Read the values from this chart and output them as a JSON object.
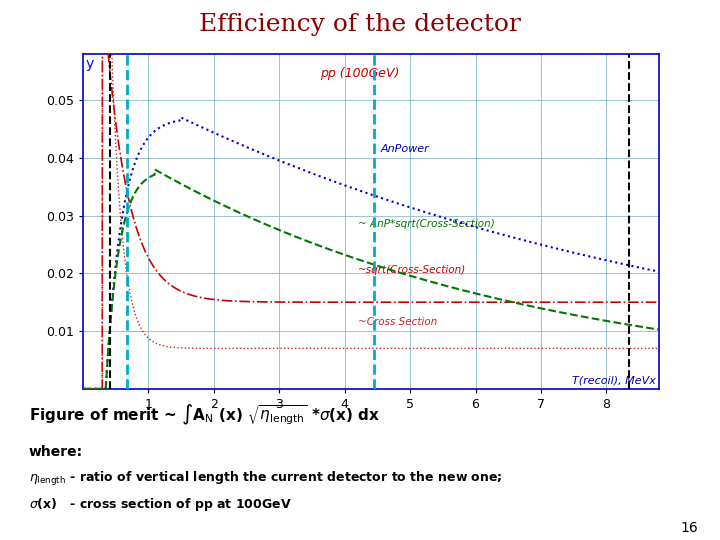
{
  "title": "Efficiency of the detector",
  "title_color": "#8B0000",
  "title_fontsize": 18,
  "plot_bg": "#ffffff",
  "outer_bg": "#ffffff",
  "xlim": [
    0,
    8.8
  ],
  "ylim": [
    0,
    0.058
  ],
  "yticks": [
    0.01,
    0.02,
    0.03,
    0.04,
    0.05
  ],
  "xticks": [
    1,
    2,
    3,
    4,
    5,
    6,
    7,
    8
  ],
  "xlabel": "T(recoil), MeVx",
  "xlabel_color": "#0000aa",
  "pp_label": "pp (100GeV)",
  "pp_label_color": "#cc0000",
  "curve_colors": {
    "blue_dotted": "#0000cc",
    "green_dashed": "#007700",
    "red_dotdash": "#cc0000",
    "red_dotted": "#cc2222"
  },
  "vlines_black": [
    0.42,
    8.35
  ],
  "vlines_cyan": [
    0.68,
    4.45
  ],
  "grid_color": "#88bbcc",
  "page_number": "16",
  "label_AnPower": "AnPower",
  "label_green": "~ AnP*sqrt(Cross-Section)",
  "label_red_dash": "~sqrt(Cross-Section)",
  "label_red_dot": "~Cross Section"
}
